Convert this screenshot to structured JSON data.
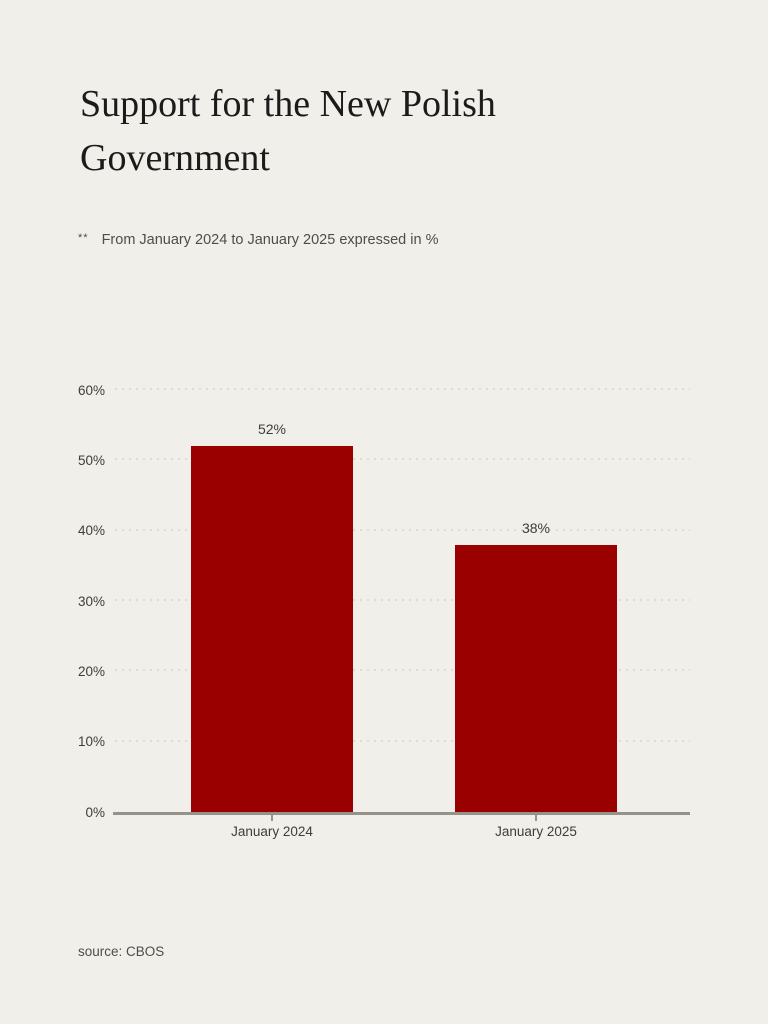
{
  "page": {
    "title": "Support for the New Polish Government",
    "subtitle_marker": "**",
    "subtitle": "From January 2024 to January 2025 expressed in %",
    "source": "source: CBOS"
  },
  "colors": {
    "background": "#f1efe9",
    "bar": "#9a0000",
    "title_text": "#1b1b1b",
    "muted_text": "#4d4d4d",
    "axis_text": "#3d3d3d",
    "gridline": "#dedbd3",
    "axis_line": "#94928b"
  },
  "chart_data": {
    "type": "bar",
    "title": "Support for the New Polish Government",
    "subtitle": "From January 2024 to January 2025 expressed in %",
    "categories": [
      "January 2024",
      "January 2025"
    ],
    "values": [
      52,
      38
    ],
    "value_labels": [
      "52%",
      "38%"
    ],
    "ylim": [
      0,
      60
    ],
    "yticks": [
      0,
      10,
      20,
      30,
      40,
      50,
      60
    ],
    "ytick_labels": [
      "0%",
      "10%",
      "20%",
      "30%",
      "40%",
      "50%",
      "60%"
    ],
    "grid": "horizontal-dotted",
    "legend": "none",
    "bar_color": "#9a0000",
    "source": "CBOS"
  }
}
